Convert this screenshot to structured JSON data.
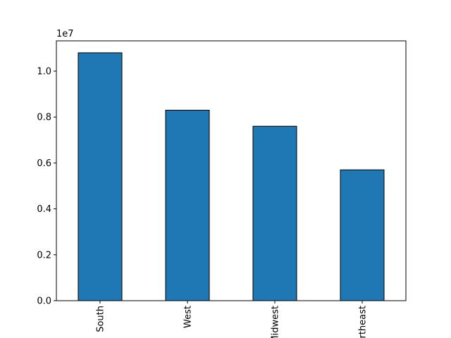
{
  "chart_data": {
    "type": "bar",
    "categories": [
      "South",
      "West",
      "Midwest",
      "Northeast"
    ],
    "values": [
      10800000,
      8300000,
      7600000,
      5700000
    ],
    "color": "#1f77b4",
    "edgecolor": "#000000",
    "ylim": [
      0,
      11320000
    ],
    "yticks": [
      {
        "value": 0,
        "label": "0.0"
      },
      {
        "value": 2000000,
        "label": "0.2"
      },
      {
        "value": 4000000,
        "label": "0.4"
      },
      {
        "value": 6000000,
        "label": "0.6"
      },
      {
        "value": 8000000,
        "label": "0.8"
      },
      {
        "value": 10000000,
        "label": "1.0"
      }
    ],
    "y_offset_label": "1e7",
    "grid": false
  }
}
